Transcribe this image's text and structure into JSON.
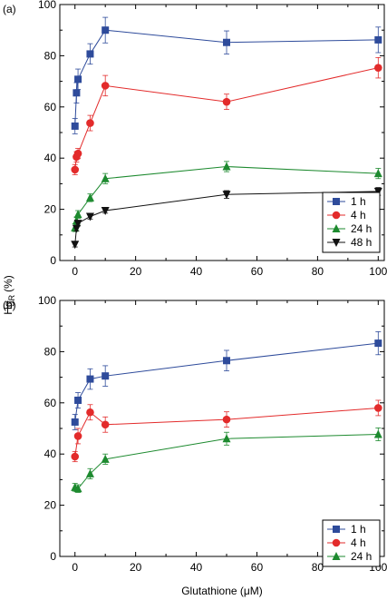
{
  "ylabel_main": "Hg",
  "ylabel_sub": "R",
  "ylabel_unit": "(%)",
  "chart_data": [
    {
      "type": "line",
      "panel_label": "(a)",
      "xlabel": "",
      "ylabel": "HgR (%)",
      "xlim": [
        -5,
        102
      ],
      "ylim": [
        0,
        100
      ],
      "xticks": [
        0,
        20,
        40,
        60,
        80,
        100
      ],
      "yticks": [
        0,
        20,
        40,
        60,
        80,
        100
      ],
      "grid": false,
      "legend_position": "bottom-right",
      "series": [
        {
          "name": "1 h",
          "color": "#2e4b9b",
          "marker": "square",
          "x": [
            0,
            0.5,
            1,
            5,
            10,
            50,
            100
          ],
          "y": [
            52.5,
            65.5,
            70.8,
            80.7,
            90,
            85.2,
            86.2
          ],
          "err": [
            3,
            4,
            4,
            4,
            5,
            4.5,
            5
          ]
        },
        {
          "name": "4 h",
          "color": "#e32b2b",
          "marker": "circle",
          "x": [
            0,
            0.5,
            1,
            5,
            10,
            50,
            100
          ],
          "y": [
            35.5,
            40.5,
            41.8,
            53.7,
            68.3,
            62,
            75.3
          ],
          "err": [
            2,
            2,
            2,
            3,
            4,
            3,
            4
          ]
        },
        {
          "name": "24 h",
          "color": "#1d8a2f",
          "marker": "triangle-up",
          "x": [
            0,
            0.5,
            1,
            5,
            10,
            50,
            100
          ],
          "y": [
            12.8,
            15.5,
            18,
            24.5,
            32,
            36.7,
            34
          ],
          "err": [
            1.5,
            1.5,
            1.5,
            1.5,
            2,
            2,
            2
          ]
        },
        {
          "name": "48 h",
          "color": "#111111",
          "marker": "triangle-down",
          "x": [
            0,
            0.5,
            1,
            5,
            10,
            50,
            100
          ],
          "y": [
            6.3,
            12.5,
            14.5,
            17.2,
            19.5,
            25.8,
            27
          ],
          "err": [
            1,
            1,
            1,
            1,
            1,
            1.5,
            1.5
          ]
        }
      ]
    },
    {
      "type": "line",
      "panel_label": "(b)",
      "xlabel": "Glutathione (μM)",
      "ylabel": "HgR (%)",
      "xlim": [
        -5,
        102
      ],
      "ylim": [
        0,
        100
      ],
      "xticks": [
        0,
        20,
        40,
        60,
        80,
        100
      ],
      "yticks": [
        0,
        20,
        40,
        60,
        80,
        100
      ],
      "grid": false,
      "legend_position": "bottom-right",
      "series": [
        {
          "name": "1 h",
          "color": "#2e4b9b",
          "marker": "square",
          "x": [
            0,
            1,
            5,
            10,
            50,
            100
          ],
          "y": [
            52.5,
            61,
            69.3,
            70.5,
            76.5,
            83.3
          ],
          "err": [
            3,
            3,
            4,
            4,
            4,
            4.5
          ]
        },
        {
          "name": "4 h",
          "color": "#e32b2b",
          "marker": "circle",
          "x": [
            0,
            1,
            5,
            10,
            50,
            100
          ],
          "y": [
            39,
            47,
            56.3,
            51.5,
            53.5,
            58
          ],
          "err": [
            2,
            3,
            3,
            3,
            3,
            3
          ]
        },
        {
          "name": "24 h",
          "color": "#1d8a2f",
          "marker": "triangle-up",
          "x": [
            0,
            1,
            5,
            10,
            50,
            100
          ],
          "y": [
            27,
            26.5,
            32.3,
            38,
            46,
            47.7
          ],
          "err": [
            1.5,
            1.5,
            2,
            2,
            2.5,
            2.5
          ]
        }
      ]
    }
  ]
}
